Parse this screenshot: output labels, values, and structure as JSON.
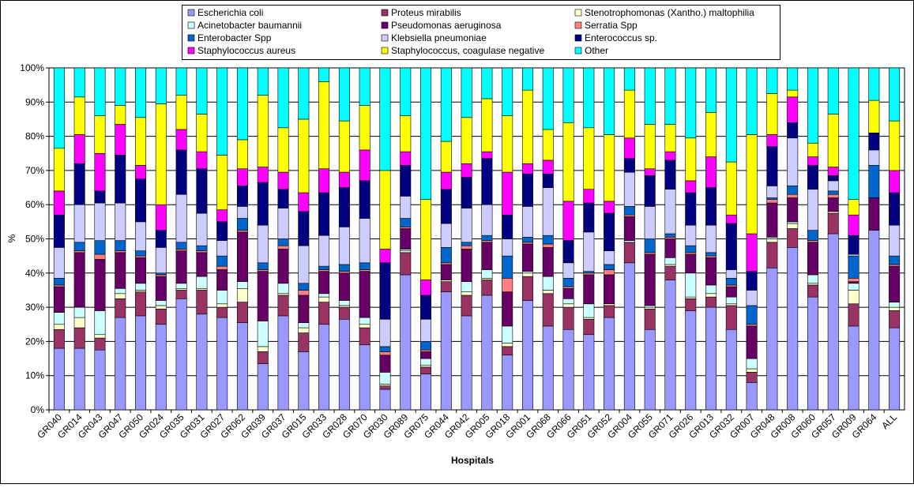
{
  "chart_data": {
    "type": "stacked_bar_100",
    "x_label": "Hospitals",
    "y_label": "%",
    "categories": [
      "GR040",
      "GR014",
      "GR043",
      "GR047",
      "GR050",
      "GR024",
      "GR035",
      "GR031",
      "GR027",
      "GR062",
      "GR039",
      "GR037",
      "GR015",
      "GR033",
      "GR028",
      "GR070",
      "GR030",
      "GR089",
      "GR075",
      "GR044",
      "GR042",
      "GR005",
      "GR018",
      "GR001",
      "GR068",
      "GR066",
      "GR051",
      "GR052",
      "GR004",
      "GR055",
      "GR071",
      "GR026",
      "GR013",
      "GR032",
      "GR007",
      "GR048",
      "GR008",
      "GR060",
      "GR057",
      "GR009",
      "GR064",
      "ALL"
    ],
    "ylim": [
      0,
      100
    ],
    "yticks": [
      {
        "value": 0,
        "label": "0%"
      },
      {
        "value": 10,
        "label": "10%"
      },
      {
        "value": 20,
        "label": "20%"
      },
      {
        "value": 30,
        "label": "30%"
      },
      {
        "value": 40,
        "label": "40%"
      },
      {
        "value": 50,
        "label": "50%"
      },
      {
        "value": 60,
        "label": "60%"
      },
      {
        "value": 70,
        "label": "70%"
      },
      {
        "value": 80,
        "label": "80%"
      },
      {
        "value": 90,
        "label": "90%"
      },
      {
        "value": 100,
        "label": "100%"
      }
    ],
    "grid": true,
    "legend": "top",
    "series": [
      {
        "name": "Escherichia coli",
        "color": "#9999ff",
        "values": [
          18,
          18,
          17.5,
          27,
          27.5,
          25,
          32.5,
          28,
          27,
          25.5,
          13.5,
          27.5,
          17,
          25,
          26.5,
          19,
          6,
          39.5,
          10.5,
          34.5,
          27.5,
          33.5,
          16,
          32,
          24.5,
          23.5,
          22,
          27,
          43,
          23.5,
          38,
          29,
          30,
          23.5,
          8,
          41.5,
          47.5,
          33,
          51.5,
          24.5,
          52.5,
          24
        ]
      },
      {
        "name": "Proteus mirabilis",
        "color": "#993366",
        "values": [
          5.5,
          6,
          3.5,
          5.5,
          7,
          4.5,
          2.5,
          7,
          3,
          6,
          3.5,
          6,
          5.5,
          6.5,
          3.5,
          5,
          1,
          6.5,
          2,
          3,
          6,
          4.5,
          2.5,
          7,
          9.5,
          6.5,
          4.5,
          3.5,
          6,
          6,
          4,
          3.5,
          3,
          7,
          3,
          7.5,
          5.5,
          3.5,
          6,
          6.5,
          0,
          5
        ]
      },
      {
        "name": "Stenotrophomonas (Xantho.) maltophilia",
        "color": "#ffffcc",
        "values": [
          1.5,
          3,
          1,
          1.5,
          0.5,
          1,
          0.5,
          0.5,
          1,
          4,
          1.5,
          0.5,
          1.5,
          1.5,
          0.5,
          1,
          0.5,
          0.5,
          0.5,
          0.5,
          1,
          0.5,
          1,
          1,
          1,
          1,
          0.5,
          0.5,
          0,
          0.5,
          0.5,
          0.5,
          1,
          0.5,
          1,
          1,
          1.5,
          0.5,
          0.5,
          4,
          0,
          1
        ]
      },
      {
        "name": "Acinetobacter baumannii",
        "color": "#ccffff",
        "values": [
          3.5,
          3,
          7,
          1.5,
          2,
          1.5,
          1.5,
          3.5,
          4,
          2,
          7.5,
          3,
          1.5,
          1,
          1.5,
          2,
          3.5,
          0.5,
          2,
          0,
          3,
          2.5,
          5,
          0.5,
          4,
          1.5,
          4,
          0,
          0.5,
          0.5,
          2,
          7,
          2.5,
          2,
          3,
          0.5,
          0.5,
          2.5,
          0,
          2,
          0,
          1.5
        ]
      },
      {
        "name": "Pseudomonas aeruginosa",
        "color": "#660066",
        "values": [
          7.5,
          16,
          15,
          10.5,
          7.5,
          7,
          9.5,
          7,
          6,
          14.5,
          14.5,
          10,
          8,
          6.5,
          8,
          13.5,
          5,
          6,
          2,
          4.5,
          9.5,
          8,
          10,
          8,
          8.5,
          3,
          8.5,
          8.5,
          7,
          15,
          5.5,
          5.5,
          8,
          3,
          9.5,
          10,
          7,
          9.5,
          4,
          0.5,
          9.5,
          10.5
        ]
      },
      {
        "name": "Serratia Spp",
        "color": "#ff8080",
        "values": [
          0.5,
          0.5,
          1.5,
          0.5,
          0.5,
          0.5,
          0.5,
          0.5,
          1,
          0.5,
          0.5,
          1,
          1.5,
          0.5,
          0.5,
          0.5,
          1,
          0.5,
          0.5,
          0.5,
          1,
          0.5,
          4,
          0.5,
          1,
          0.5,
          0.5,
          1.5,
          0.5,
          0.5,
          0.5,
          0.5,
          0.5,
          0.5,
          0.5,
          1,
          1,
          0.5,
          1,
          1,
          0,
          0.5
        ]
      },
      {
        "name": "Enterobacter Spp",
        "color": "#0066cc",
        "values": [
          2,
          2.5,
          4,
          3,
          1.5,
          0.5,
          2,
          1.5,
          3,
          3.5,
          2,
          2,
          2,
          1,
          2,
          2,
          1.5,
          2.5,
          2.5,
          4.5,
          1,
          1.5,
          6.5,
          1.5,
          2.5,
          2.5,
          0.5,
          1.5,
          2.5,
          4,
          1,
          2,
          1,
          2,
          5.5,
          0.5,
          2.5,
          3,
          1,
          6.5,
          9.5,
          2.5
        ]
      },
      {
        "name": "Klebsiella pneumoniae",
        "color": "#ccccff",
        "values": [
          9,
          11,
          11,
          11,
          8.5,
          7.5,
          14,
          9.5,
          4.5,
          3.5,
          11,
          9,
          11,
          9,
          11,
          13,
          8,
          6.5,
          6.5,
          7,
          10,
          9,
          5,
          9,
          14,
          4.5,
          11.5,
          4,
          10,
          9.5,
          13,
          6,
          8,
          2.5,
          4.5,
          3.5,
          14,
          12,
          3,
          0.5,
          4.5,
          9
        ]
      },
      {
        "name": "Enterococcus sp.",
        "color": "#000080",
        "values": [
          9.5,
          12,
          3.5,
          14,
          12.5,
          5,
          13,
          13,
          5.5,
          6,
          12.5,
          5.5,
          10,
          12.5,
          11.5,
          11,
          16.5,
          9,
          7,
          10,
          9,
          13.5,
          7,
          9.5,
          4,
          6.5,
          8.5,
          11,
          4,
          9,
          8.5,
          9.5,
          11,
          13.5,
          5.5,
          11.5,
          4.5,
          7,
          1.5,
          5.5,
          5,
          9.5
        ]
      },
      {
        "name": "Staphylococcus aureus",
        "color": "#ff00ff",
        "values": [
          7,
          8.5,
          11,
          9,
          4,
          7.5,
          6,
          5,
          3.5,
          5,
          4.5,
          5,
          5.5,
          7,
          4.5,
          9,
          4,
          4,
          4.5,
          5,
          4,
          2,
          12.5,
          3,
          4,
          11.5,
          4,
          3.5,
          6,
          2,
          2.5,
          3.5,
          9,
          2.5,
          11,
          3.5,
          7.5,
          2.5,
          2.5,
          6,
          0,
          6.5
        ]
      },
      {
        "name": "Staphylococcus, coagulase negative",
        "color": "#ffff00",
        "values": [
          12.5,
          11,
          11,
          5.5,
          14,
          29.5,
          10,
          11,
          16,
          8.5,
          21,
          13,
          21.5,
          25.5,
          15,
          13,
          23,
          10.5,
          23.5,
          9,
          13.5,
          15.5,
          16.5,
          21.5,
          9,
          23,
          18,
          19.5,
          14,
          13,
          8,
          12.5,
          13,
          15.5,
          29,
          12,
          2,
          4,
          15.5,
          4.5,
          9.5,
          14.5
        ]
      },
      {
        "name": "Other",
        "color": "#00ffff",
        "values": [
          23.5,
          8.5,
          14,
          11,
          14.5,
          10.5,
          8,
          13.5,
          25.5,
          21,
          8,
          17.5,
          15,
          4,
          15.5,
          11,
          30,
          14,
          38.5,
          21.5,
          14.5,
          9,
          14,
          6.5,
          18,
          16,
          17.5,
          19.5,
          6.5,
          16.5,
          16.5,
          20.5,
          13,
          27.5,
          19.5,
          7.5,
          6.5,
          22,
          13.5,
          38.5,
          9.5,
          15.5
        ]
      }
    ]
  }
}
